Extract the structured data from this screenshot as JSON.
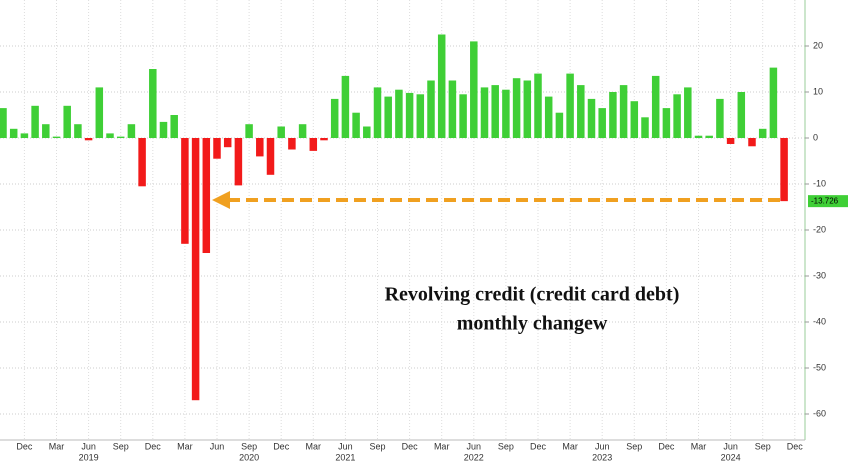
{
  "chart_data": {
    "type": "bar",
    "annotation": [
      "Revolving credit (credit card debt)",
      "monthly changew"
    ],
    "categories": [
      null,
      null,
      "Dec",
      null,
      null,
      "Mar",
      null,
      null,
      "Jun",
      null,
      null,
      "Sep",
      null,
      null,
      "Dec",
      null,
      null,
      "Mar",
      null,
      null,
      "Jun",
      null,
      null,
      "Sep",
      null,
      null,
      "Dec",
      null,
      null,
      "Mar",
      null,
      null,
      "Jun",
      null,
      null,
      "Sep",
      null,
      null,
      "Dec",
      null,
      null,
      "Mar",
      null,
      null,
      "Jun",
      null,
      null,
      "Sep",
      null,
      null,
      "Dec",
      null,
      null,
      "Mar",
      null,
      null,
      "Jun",
      null,
      null,
      "Sep",
      null,
      null,
      "Dec",
      null,
      null,
      "Mar",
      null,
      null,
      "Jun",
      null,
      null,
      "Sep",
      null,
      null,
      "Dec"
    ],
    "years": [
      null,
      null,
      null,
      null,
      null,
      null,
      null,
      null,
      "2019",
      null,
      null,
      null,
      null,
      null,
      null,
      null,
      null,
      null,
      null,
      null,
      null,
      null,
      null,
      "2020",
      null,
      null,
      null,
      null,
      null,
      null,
      null,
      null,
      "2021",
      null,
      null,
      null,
      null,
      null,
      null,
      null,
      null,
      null,
      null,
      null,
      "2022",
      null,
      null,
      null,
      null,
      null,
      null,
      null,
      null,
      null,
      null,
      null,
      "2023",
      null,
      null,
      null,
      null,
      null,
      null,
      null,
      null,
      null,
      null,
      null,
      "2024",
      null,
      null,
      null,
      null,
      null,
      null
    ],
    "values": [
      6.5,
      2,
      1,
      7,
      3,
      0.3,
      7,
      3,
      -0.5,
      11,
      1,
      0.3,
      3,
      -10.5,
      15,
      3.5,
      5,
      -23,
      -57,
      -25,
      -4.5,
      -2,
      -10.3,
      3,
      -4,
      -8,
      2.5,
      -2.5,
      3,
      -2.8,
      -0.5,
      8.5,
      13.5,
      5.5,
      2.5,
      11,
      9,
      10.5,
      9.8,
      9.5,
      12.5,
      22.5,
      12.5,
      9.5,
      21,
      11,
      11.5,
      10.5,
      13,
      12.5,
      14,
      9,
      5.5,
      14,
      11.5,
      8.5,
      6.5,
      10,
      11.5,
      8,
      4.5,
      13.5,
      6.5,
      9.5,
      11,
      0.5,
      0.5,
      8.5,
      -1.3,
      10,
      -1.8,
      2,
      15.3,
      -13.726,
      null
    ],
    "value_labels": [
      null,
      null,
      null,
      null,
      null,
      null,
      null,
      null,
      null,
      null,
      null,
      null,
      null,
      null,
      null,
      null,
      null,
      null,
      null,
      null,
      null,
      null,
      null,
      null,
      null,
      null,
      null,
      null,
      null,
      null,
      null,
      null,
      null,
      null,
      null,
      null,
      null,
      null,
      null,
      null,
      null,
      null,
      null,
      null,
      null,
      null,
      null,
      null,
      null,
      null,
      null,
      null,
      null,
      null,
      null,
      null,
      null,
      null,
      null,
      null,
      null,
      null,
      null,
      null,
      null,
      null,
      null,
      null,
      null,
      null,
      null,
      null,
      null,
      "-13.726",
      null
    ],
    "positive_color": "#3fcf36",
    "negative_color": "#f21a1a",
    "ylim": [
      -65.65,
      30
    ],
    "yticks": [
      -60,
      -50,
      -40,
      -30,
      -20,
      -10,
      0,
      10,
      20
    ],
    "grid": true
  }
}
